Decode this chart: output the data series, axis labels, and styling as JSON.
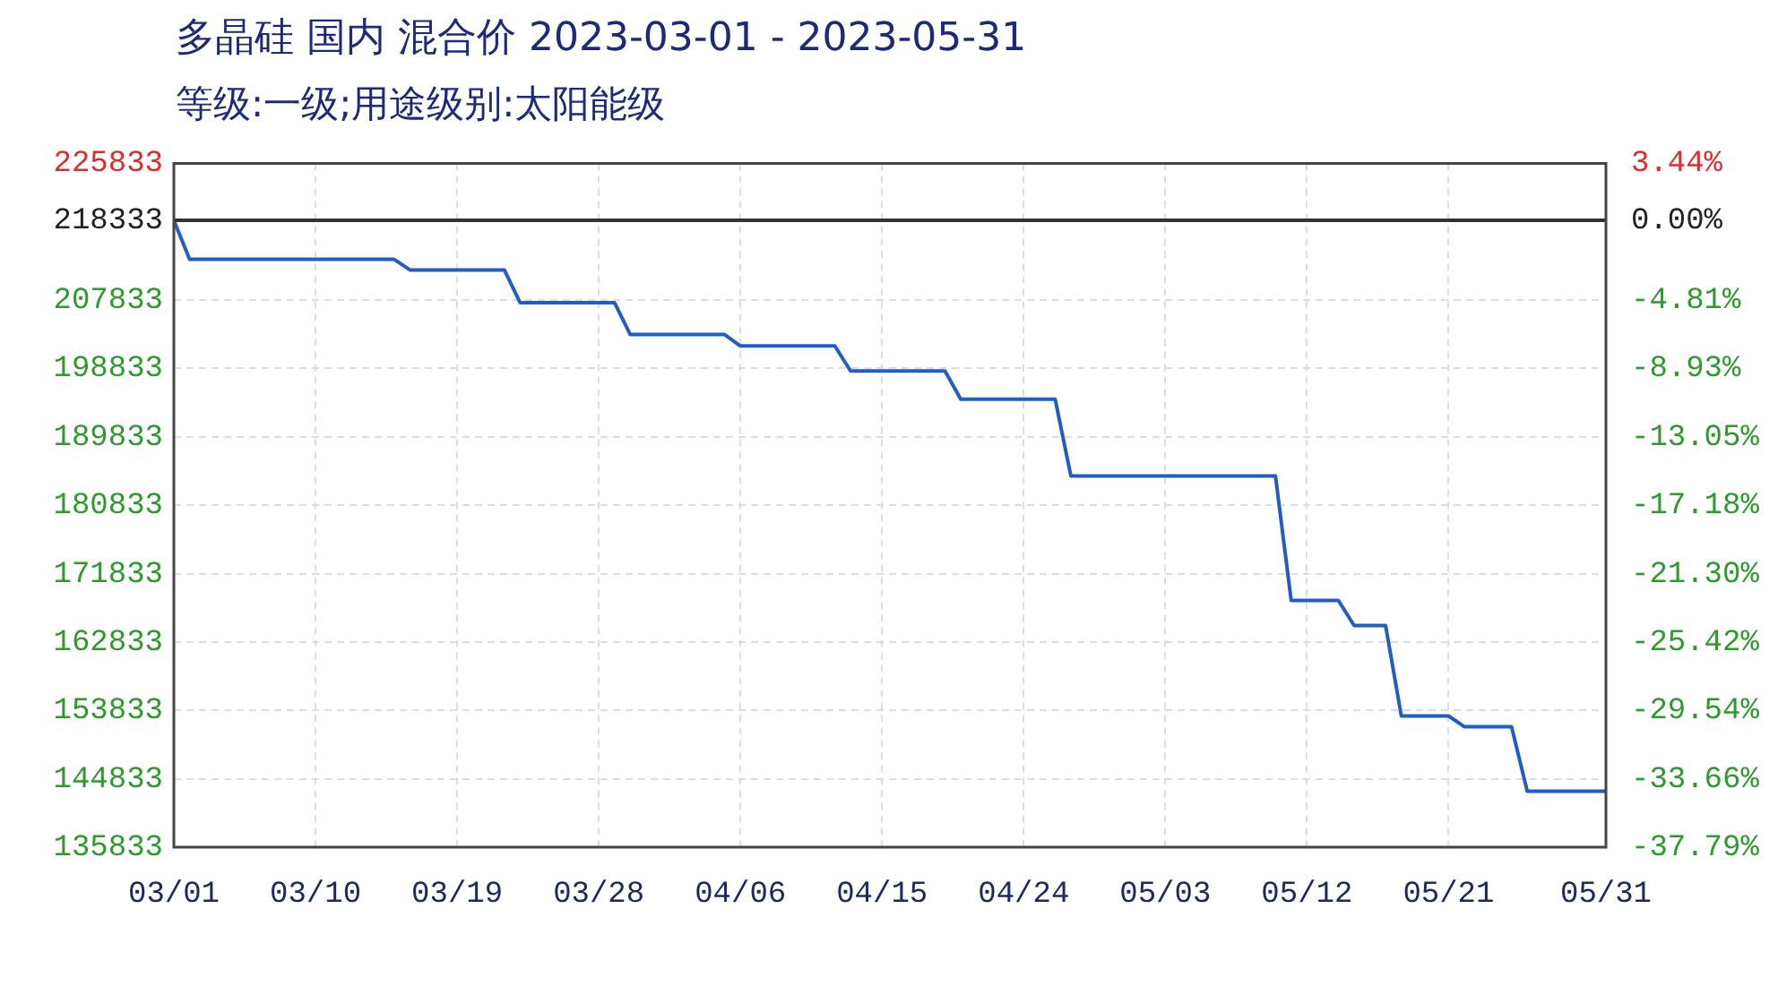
{
  "chart_data": {
    "type": "line",
    "title": "多晶硅 国内 混合价 2023-03-01 - 2023-05-31",
    "subtitle": "等级:一级;用途级别:太阳能级",
    "x": [
      "2023-03-01",
      "2023-03-02",
      "2023-03-15",
      "2023-03-16",
      "2023-03-22",
      "2023-03-23",
      "2023-03-29",
      "2023-03-30",
      "2023-04-05",
      "2023-04-06",
      "2023-04-12",
      "2023-04-13",
      "2023-04-19",
      "2023-04-20",
      "2023-04-26",
      "2023-04-27",
      "2023-05-10",
      "2023-05-11",
      "2023-05-14",
      "2023-05-15",
      "2023-05-17",
      "2023-05-18",
      "2023-05-21",
      "2023-05-22",
      "2023-05-25",
      "2023-05-26",
      "2023-05-31"
    ],
    "series": [
      {
        "color": "#1f5fc4",
        "values": [
          218333,
          213200,
          213200,
          211800,
          211800,
          207500,
          207500,
          203300,
          203300,
          201800,
          201800,
          198500,
          198500,
          194800,
          194800,
          184700,
          184700,
          168300,
          168300,
          165000,
          165000,
          153100,
          153100,
          151700,
          151700,
          143200,
          143200
        ]
      }
    ],
    "xlim": [
      "2023-03-01",
      "2023-05-31"
    ],
    "xticks": [
      {
        "value": "2023-03-01",
        "label": "03/01"
      },
      {
        "value": "2023-03-10",
        "label": "03/10"
      },
      {
        "value": "2023-03-19",
        "label": "03/19"
      },
      {
        "value": "2023-03-28",
        "label": "03/28"
      },
      {
        "value": "2023-04-06",
        "label": "04/06"
      },
      {
        "value": "2023-04-15",
        "label": "04/15"
      },
      {
        "value": "2023-04-24",
        "label": "04/24"
      },
      {
        "value": "2023-05-03",
        "label": "05/03"
      },
      {
        "value": "2023-05-12",
        "label": "05/12"
      },
      {
        "value": "2023-05-21",
        "label": "05/21"
      },
      {
        "value": "2023-05-31",
        "label": "05/31"
      }
    ],
    "ylim": [
      135833,
      225833
    ],
    "yticks": [
      135833,
      144833,
      153833,
      162833,
      171833,
      180833,
      189833,
      198833,
      207833,
      218333,
      225833
    ],
    "y2lim": [
      -37.79,
      3.44
    ],
    "y2ticks": [
      {
        "value": -37.79,
        "label": "-37.79%"
      },
      {
        "value": -33.66,
        "label": "-33.66%"
      },
      {
        "value": -29.54,
        "label": "-29.54%"
      },
      {
        "value": -25.42,
        "label": "-25.42%"
      },
      {
        "value": -21.3,
        "label": "-21.30%"
      },
      {
        "value": -17.18,
        "label": "-17.18%"
      },
      {
        "value": -13.05,
        "label": "-13.05%"
      },
      {
        "value": -8.93,
        "label": "-8.93%"
      },
      {
        "value": -4.81,
        "label": "-4.81%"
      },
      {
        "value": 0,
        "label": "0.00%"
      },
      {
        "value": 3.44,
        "label": "3.44%"
      }
    ],
    "ref_lines": [
      {
        "axis": "y",
        "value": 218333,
        "color": "#333333"
      }
    ],
    "grid": true,
    "legend": false,
    "marker": "none",
    "line_style": "solid"
  }
}
